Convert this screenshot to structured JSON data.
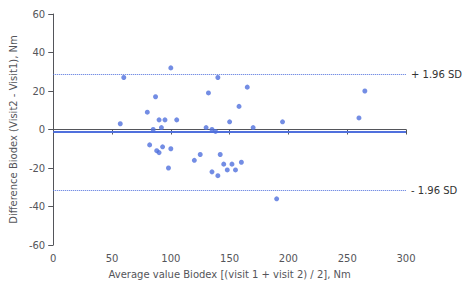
{
  "chart_data": {
    "type": "scatter",
    "x_label": "Average value Biodex [(visit 1 + visit 2) / 2], Nm",
    "y_label": "Difference Biodex (Visit2 - Visit1), Nm",
    "x": [
      57,
      60,
      80,
      82,
      85,
      87,
      88,
      90,
      90,
      92,
      93,
      95,
      98,
      100,
      100,
      105,
      120,
      125,
      130,
      132,
      135,
      135,
      138,
      140,
      140,
      142,
      145,
      148,
      150,
      152,
      155,
      158,
      160,
      165,
      170,
      190,
      195,
      260,
      265
    ],
    "values": [
      3,
      27,
      9,
      -8,
      0,
      17,
      -11,
      -12,
      5,
      1,
      -9,
      5,
      -20,
      -10,
      32,
      5,
      -16,
      -13,
      1,
      19,
      0,
      -22,
      -1,
      27,
      -24,
      -13,
      -18,
      -21,
      4,
      -18,
      -21,
      12,
      -17,
      22,
      1,
      -36,
      4,
      6,
      20
    ],
    "reference_lines": [
      {
        "value": -1,
        "line_style": "solid"
      },
      {
        "value": 28.5,
        "label": "+ 1.96 SD",
        "line_style": "dotted"
      },
      {
        "value": -31.5,
        "label": "- 1.96 SD",
        "line_style": "dotted"
      }
    ],
    "xlim": [
      0,
      300
    ],
    "ylim": [
      -60,
      60
    ],
    "xticks": [
      0,
      50,
      100,
      150,
      200,
      250,
      300
    ],
    "yticks": [
      -60,
      -40,
      -20,
      0,
      20,
      40,
      60
    ],
    "grid": false
  }
}
